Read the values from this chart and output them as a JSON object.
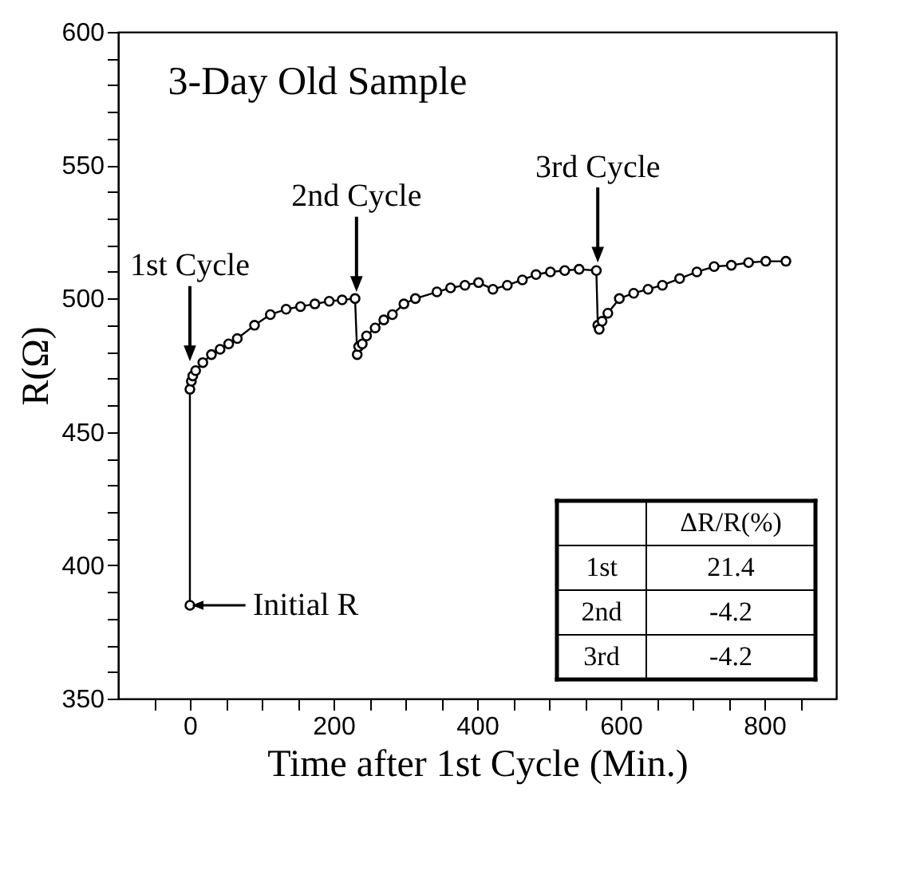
{
  "chart_data": {
    "type": "line",
    "title": "3-Day Old Sample",
    "xlabel": "Time after 1st Cycle (Min.)",
    "ylabel": "R(Ω)",
    "x": [
      0,
      0,
      2,
      4,
      8,
      18,
      30,
      42,
      54,
      66,
      90,
      112,
      134,
      154,
      174,
      194,
      212,
      230,
      233,
      235,
      240,
      246,
      258,
      270,
      282,
      298,
      314,
      344,
      363,
      383,
      402,
      422,
      442,
      463,
      482,
      502,
      522,
      542,
      566,
      568,
      570,
      574,
      582,
      598,
      618,
      638,
      658,
      682,
      706,
      730,
      754,
      778,
      802,
      830
    ],
    "series": [
      {
        "color": "#000000",
        "values": [
          385,
          466,
          469,
          471,
          473,
          476,
          479,
          481,
          483,
          485,
          490,
          494,
          496,
          497,
          498,
          499,
          499.5,
          500,
          479,
          482,
          483,
          486,
          489,
          492,
          494,
          498,
          500,
          502.5,
          504,
          505,
          506,
          503.5,
          505,
          507,
          509,
          510,
          510.5,
          511,
          510.5,
          490,
          488.5,
          491.5,
          494.5,
          500,
          502,
          503.5,
          505,
          507.5,
          510,
          512,
          512.5,
          513.5,
          514,
          514
        ]
      }
    ],
    "xlim": [
      -100,
      900
    ],
    "xticks": [
      {
        "value": -50,
        "label": null
      },
      0,
      {
        "value": 50,
        "label": null
      },
      {
        "value": 100,
        "label": null
      },
      {
        "value": 150,
        "label": null
      },
      200,
      {
        "value": 250,
        "label": null
      },
      {
        "value": 300,
        "label": null
      },
      {
        "value": 350,
        "label": null
      },
      400,
      {
        "value": 450,
        "label": null
      },
      {
        "value": 500,
        "label": null
      },
      {
        "value": 550,
        "label": null
      },
      600,
      {
        "value": 650,
        "label": null
      },
      {
        "value": 700,
        "label": null
      },
      {
        "value": 750,
        "label": null
      },
      800,
      {
        "value": 850,
        "label": null
      }
    ],
    "ylim": [
      350,
      600
    ],
    "yticks": [
      350,
      {
        "value": 360,
        "label": null
      },
      {
        "value": 370,
        "label": null
      },
      {
        "value": 380,
        "label": null
      },
      {
        "value": 390,
        "label": null
      },
      400,
      {
        "value": 410,
        "label": null
      },
      {
        "value": 420,
        "label": null
      },
      {
        "value": 430,
        "label": null
      },
      {
        "value": 440,
        "label": null
      },
      450,
      {
        "value": 460,
        "label": null
      },
      {
        "value": 470,
        "label": null
      },
      {
        "value": 480,
        "label": null
      },
      {
        "value": 490,
        "label": null
      },
      500,
      {
        "value": 510,
        "label": null
      },
      {
        "value": 520,
        "label": null
      },
      {
        "value": 530,
        "label": null
      },
      {
        "value": 540,
        "label": null
      },
      550,
      {
        "value": 560,
        "label": null
      },
      {
        "value": 570,
        "label": null
      },
      {
        "value": 580,
        "label": null
      },
      {
        "value": 590,
        "label": null
      },
      600
    ],
    "marker": "circle",
    "line_style": "solid",
    "grid": false,
    "annotations": [
      {
        "text": "1st Cycle",
        "x": 0,
        "y": 474
      },
      {
        "text": "2nd Cycle",
        "x": 232,
        "y": 500
      },
      {
        "text": "3rd Cycle",
        "x": 568,
        "y": 511
      },
      {
        "text": "Initial R",
        "x": 0,
        "y": 385
      },
      "ΔR/R(%)",
      "1st",
      "21.4",
      "2nd",
      "-4.2",
      "3rd",
      "-4.2"
    ]
  }
}
